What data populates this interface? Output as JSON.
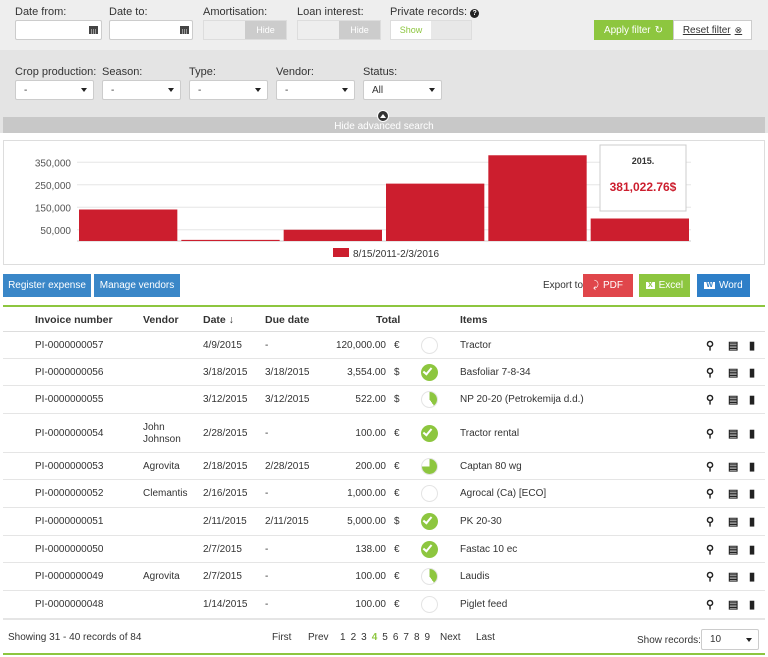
{
  "filters": {
    "date_from_label": "Date from:",
    "date_to_label": "Date to:",
    "amortisation_label": "Amortisation:",
    "amortisation_value": "Hide",
    "loan_interest_label": "Loan interest:",
    "loan_interest_value": "Hide",
    "private_records_label": "Private records:",
    "private_records_value": "Show",
    "apply_label": "Apply filter",
    "reset_label": "Reset filter"
  },
  "advanced": {
    "crop_label": "Crop production:",
    "crop_value": "-",
    "season_label": "Season:",
    "season_value": "-",
    "type_label": "Type:",
    "type_value": "-",
    "vendor_label": "Vendor:",
    "vendor_value": "-",
    "status_label": "Status:",
    "status_value": "All",
    "hide_label": "Hide advanced search"
  },
  "chart_data": {
    "type": "bar",
    "color": "#cc1e2e",
    "yticks": [
      "350,000",
      "250,000",
      "150,000",
      "50,000"
    ],
    "ylim": [
      0,
      400000
    ],
    "values": [
      140000,
      5000,
      50000,
      255000,
      381022.76,
      100000
    ],
    "legend": "8/15/2011-2/3/2016",
    "tooltip_title": "2015.",
    "tooltip_value": "381,022.76$"
  },
  "actions": {
    "register_label": "Register expense",
    "manage_label": "Manage vendors",
    "export_label": "Export to:",
    "pdf_label": "PDF",
    "excel_label": "Excel",
    "word_label": "Word"
  },
  "table": {
    "headers": {
      "invoice": "Invoice number",
      "vendor": "Vendor",
      "date": "Date ↓",
      "due": "Due date",
      "total": "Total",
      "items": "Items"
    },
    "rows": [
      {
        "invoice": "PI-0000000057",
        "vendor": "",
        "date": "4/9/2015",
        "due": "-",
        "total": "120,000.00",
        "cur": "€",
        "status": 0,
        "items": "Tractor"
      },
      {
        "invoice": "PI-0000000056",
        "vendor": "",
        "date": "3/18/2015",
        "due": "3/18/2015",
        "total": "3,554.00",
        "cur": "$",
        "status": 1,
        "items": "Basfoliar 7-8-34"
      },
      {
        "invoice": "PI-0000000055",
        "vendor": "",
        "date": "3/12/2015",
        "due": "3/12/2015",
        "total": "522.00",
        "cur": "$",
        "status": 0.4,
        "items": "NP 20-20 (Petrokemija d.d.)"
      },
      {
        "invoice": "PI-0000000054",
        "vendor": "John Johnson",
        "date": "2/28/2015",
        "due": "-",
        "total": "100.00",
        "cur": "€",
        "status": 1,
        "items": "Tractor rental"
      },
      {
        "invoice": "PI-0000000053",
        "vendor": "Agrovita",
        "date": "2/18/2015",
        "due": "2/28/2015",
        "total": "200.00",
        "cur": "€",
        "status": 0.75,
        "items": "Captan 80 wg"
      },
      {
        "invoice": "PI-0000000052",
        "vendor": "Clemantis",
        "date": "2/16/2015",
        "due": "-",
        "total": "1,000.00",
        "cur": "€",
        "status": 0,
        "items": "Agrocal (Ca) [ECO]"
      },
      {
        "invoice": "PI-0000000051",
        "vendor": "",
        "date": "2/11/2015",
        "due": "2/11/2015",
        "total": "5,000.00",
        "cur": "$",
        "status": 1,
        "items": "PK 20-30"
      },
      {
        "invoice": "PI-0000000050",
        "vendor": "",
        "date": "2/7/2015",
        "due": "-",
        "total": "138.00",
        "cur": "€",
        "status": 1,
        "items": "Fastac 10 ec"
      },
      {
        "invoice": "PI-0000000049",
        "vendor": "Agrovita",
        "date": "2/7/2015",
        "due": "-",
        "total": "100.00",
        "cur": "€",
        "status": 0.4,
        "items": "Laudis"
      },
      {
        "invoice": "PI-0000000048",
        "vendor": "",
        "date": "1/14/2015",
        "due": "-",
        "total": "100.00",
        "cur": "€",
        "status": 0,
        "items": "Piglet feed"
      }
    ]
  },
  "footer": {
    "showing": "Showing 31 - 40 records of 84",
    "first": "First",
    "prev": "Prev",
    "pages": [
      "1",
      "2",
      "3",
      "4",
      "5",
      "6",
      "7",
      "8",
      "9"
    ],
    "current_page": "4",
    "next": "Next",
    "last": "Last",
    "show_records_label": "Show records:",
    "show_records_value": "10"
  }
}
